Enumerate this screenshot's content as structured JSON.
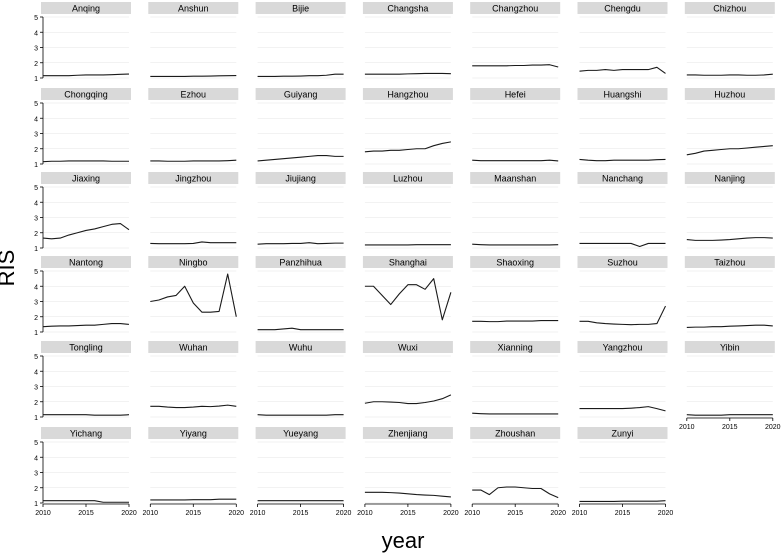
{
  "colors": {
    "panel_header_bg": "#d9d9d9",
    "line": "#1a1a1a",
    "grid": "#e6e6e6",
    "axis": "#000000",
    "background": "#ffffff"
  },
  "chart_data": {
    "type": "line",
    "layout": "small-multiples",
    "xlabel": "year",
    "ylabel": "RIS",
    "xlim": [
      2010,
      2020
    ],
    "ylim": [
      1,
      5
    ],
    "x_ticks": [
      2010,
      2015,
      2020
    ],
    "y_ticks": [
      1,
      2,
      3,
      4,
      5
    ],
    "grid": true,
    "x": [
      2010,
      2011,
      2012,
      2013,
      2014,
      2015,
      2016,
      2017,
      2018,
      2019,
      2020
    ],
    "series": [
      {
        "name": "Anqing",
        "values": [
          1.15,
          1.15,
          1.15,
          1.15,
          1.18,
          1.2,
          1.2,
          1.2,
          1.22,
          1.24,
          1.26
        ]
      },
      {
        "name": "Anshun",
        "values": [
          1.1,
          1.1,
          1.1,
          1.1,
          1.1,
          1.12,
          1.12,
          1.13,
          1.14,
          1.15,
          1.16
        ]
      },
      {
        "name": "Bijie",
        "values": [
          1.1,
          1.1,
          1.1,
          1.12,
          1.12,
          1.13,
          1.15,
          1.15,
          1.18,
          1.25,
          1.25
        ]
      },
      {
        "name": "Changsha",
        "values": [
          1.25,
          1.25,
          1.25,
          1.25,
          1.25,
          1.27,
          1.28,
          1.3,
          1.3,
          1.3,
          1.28
        ]
      },
      {
        "name": "Changzhou",
        "values": [
          1.8,
          1.8,
          1.8,
          1.8,
          1.8,
          1.82,
          1.82,
          1.85,
          1.85,
          1.87,
          1.72
        ]
      },
      {
        "name": "Chengdu",
        "values": [
          1.45,
          1.5,
          1.5,
          1.55,
          1.5,
          1.55,
          1.55,
          1.55,
          1.55,
          1.7,
          1.3
        ]
      },
      {
        "name": "Chizhou",
        "values": [
          1.2,
          1.2,
          1.18,
          1.18,
          1.18,
          1.2,
          1.2,
          1.18,
          1.18,
          1.2,
          1.25
        ]
      },
      {
        "name": "Chongqing",
        "values": [
          1.15,
          1.18,
          1.18,
          1.2,
          1.2,
          1.2,
          1.2,
          1.2,
          1.18,
          1.18,
          1.18
        ]
      },
      {
        "name": "Ezhou",
        "values": [
          1.2,
          1.2,
          1.18,
          1.18,
          1.18,
          1.2,
          1.2,
          1.2,
          1.2,
          1.22,
          1.25
        ]
      },
      {
        "name": "Guiyang",
        "values": [
          1.2,
          1.25,
          1.3,
          1.35,
          1.4,
          1.45,
          1.5,
          1.55,
          1.55,
          1.5,
          1.5
        ]
      },
      {
        "name": "Hangzhou",
        "values": [
          1.8,
          1.85,
          1.85,
          1.9,
          1.9,
          1.95,
          2.0,
          2.0,
          2.2,
          2.35,
          2.45
        ]
      },
      {
        "name": "Hefei",
        "values": [
          1.25,
          1.22,
          1.22,
          1.22,
          1.22,
          1.22,
          1.22,
          1.22,
          1.22,
          1.25,
          1.2
        ]
      },
      {
        "name": "Huangshi",
        "values": [
          1.3,
          1.25,
          1.22,
          1.22,
          1.25,
          1.25,
          1.25,
          1.25,
          1.25,
          1.28,
          1.3
        ]
      },
      {
        "name": "Huzhou",
        "values": [
          1.6,
          1.7,
          1.85,
          1.9,
          1.95,
          2.0,
          2.0,
          2.05,
          2.1,
          2.15,
          2.2
        ]
      },
      {
        "name": "Jiaxing",
        "values": [
          1.65,
          1.6,
          1.65,
          1.85,
          2.0,
          2.15,
          2.25,
          2.4,
          2.55,
          2.6,
          2.2
        ]
      },
      {
        "name": "Jingzhou",
        "values": [
          1.3,
          1.28,
          1.28,
          1.28,
          1.28,
          1.3,
          1.4,
          1.35,
          1.35,
          1.35,
          1.35
        ]
      },
      {
        "name": "Jiujiang",
        "values": [
          1.25,
          1.28,
          1.28,
          1.28,
          1.3,
          1.3,
          1.35,
          1.28,
          1.3,
          1.32,
          1.32
        ]
      },
      {
        "name": "Luzhou",
        "values": [
          1.2,
          1.2,
          1.2,
          1.2,
          1.2,
          1.2,
          1.22,
          1.22,
          1.22,
          1.22,
          1.22
        ]
      },
      {
        "name": "Maanshan",
        "values": [
          1.25,
          1.22,
          1.2,
          1.2,
          1.2,
          1.2,
          1.2,
          1.2,
          1.2,
          1.2,
          1.22
        ]
      },
      {
        "name": "Nanchang",
        "values": [
          1.3,
          1.3,
          1.3,
          1.3,
          1.3,
          1.3,
          1.3,
          1.1,
          1.3,
          1.3,
          1.3
        ]
      },
      {
        "name": "Nanjing",
        "values": [
          1.55,
          1.5,
          1.5,
          1.5,
          1.52,
          1.55,
          1.6,
          1.65,
          1.68,
          1.68,
          1.65
        ]
      },
      {
        "name": "Nantong",
        "values": [
          1.35,
          1.38,
          1.4,
          1.4,
          1.42,
          1.45,
          1.45,
          1.5,
          1.55,
          1.55,
          1.5
        ]
      },
      {
        "name": "Ningbo",
        "values": [
          3.0,
          3.1,
          3.3,
          3.4,
          4.0,
          2.9,
          2.3,
          2.3,
          2.35,
          4.8,
          2.0
        ]
      },
      {
        "name": "Panzhihua",
        "values": [
          1.15,
          1.15,
          1.15,
          1.2,
          1.25,
          1.15,
          1.15,
          1.15,
          1.15,
          1.15,
          1.15
        ]
      },
      {
        "name": "Shanghai",
        "values": [
          4.0,
          4.0,
          3.4,
          2.8,
          3.5,
          4.1,
          4.1,
          3.8,
          4.5,
          1.8,
          3.6
        ]
      },
      {
        "name": "Shaoxing",
        "values": [
          1.7,
          1.7,
          1.68,
          1.68,
          1.72,
          1.72,
          1.72,
          1.72,
          1.75,
          1.75,
          1.75
        ]
      },
      {
        "name": "Suzhou",
        "values": [
          1.7,
          1.7,
          1.6,
          1.55,
          1.52,
          1.5,
          1.48,
          1.5,
          1.5,
          1.55,
          2.7
        ]
      },
      {
        "name": "Taizhou",
        "values": [
          1.3,
          1.32,
          1.32,
          1.35,
          1.35,
          1.38,
          1.4,
          1.42,
          1.45,
          1.45,
          1.4
        ]
      },
      {
        "name": "Tongling",
        "values": [
          1.15,
          1.15,
          1.15,
          1.15,
          1.15,
          1.15,
          1.12,
          1.12,
          1.12,
          1.12,
          1.15
        ]
      },
      {
        "name": "Wuhan",
        "values": [
          1.7,
          1.7,
          1.65,
          1.62,
          1.62,
          1.65,
          1.7,
          1.68,
          1.72,
          1.78,
          1.7
        ]
      },
      {
        "name": "Wuhu",
        "values": [
          1.15,
          1.12,
          1.12,
          1.12,
          1.12,
          1.12,
          1.12,
          1.12,
          1.12,
          1.15,
          1.15
        ]
      },
      {
        "name": "Wuxi",
        "values": [
          1.9,
          2.0,
          2.0,
          1.98,
          1.95,
          1.88,
          1.88,
          1.95,
          2.05,
          2.2,
          2.45
        ]
      },
      {
        "name": "Xianning",
        "values": [
          1.25,
          1.22,
          1.2,
          1.2,
          1.2,
          1.2,
          1.2,
          1.2,
          1.2,
          1.2,
          1.2
        ]
      },
      {
        "name": "Yangzhou",
        "values": [
          1.55,
          1.55,
          1.55,
          1.55,
          1.55,
          1.55,
          1.58,
          1.62,
          1.68,
          1.55,
          1.4
        ]
      },
      {
        "name": "Yibin",
        "values": [
          1.15,
          1.12,
          1.12,
          1.12,
          1.12,
          1.15,
          1.15,
          1.15,
          1.15,
          1.15,
          1.15
        ]
      },
      {
        "name": "Yichang",
        "values": [
          1.15,
          1.15,
          1.15,
          1.15,
          1.15,
          1.15,
          1.15,
          1.05,
          1.05,
          1.05,
          1.05
        ]
      },
      {
        "name": "Yiyang",
        "values": [
          1.2,
          1.2,
          1.2,
          1.2,
          1.2,
          1.22,
          1.22,
          1.22,
          1.25,
          1.25,
          1.25
        ]
      },
      {
        "name": "Yueyang",
        "values": [
          1.15,
          1.15,
          1.15,
          1.15,
          1.15,
          1.15,
          1.15,
          1.15,
          1.15,
          1.15,
          1.15
        ]
      },
      {
        "name": "Zhenjiang",
        "values": [
          1.7,
          1.7,
          1.7,
          1.68,
          1.65,
          1.6,
          1.55,
          1.52,
          1.5,
          1.45,
          1.4
        ]
      },
      {
        "name": "Zhoushan",
        "values": [
          1.85,
          1.85,
          1.55,
          2.0,
          2.05,
          2.05,
          2.0,
          1.95,
          1.95,
          1.6,
          1.35
        ]
      },
      {
        "name": "Zunyi",
        "values": [
          1.1,
          1.1,
          1.1,
          1.1,
          1.1,
          1.12,
          1.12,
          1.12,
          1.12,
          1.12,
          1.15
        ]
      }
    ]
  }
}
